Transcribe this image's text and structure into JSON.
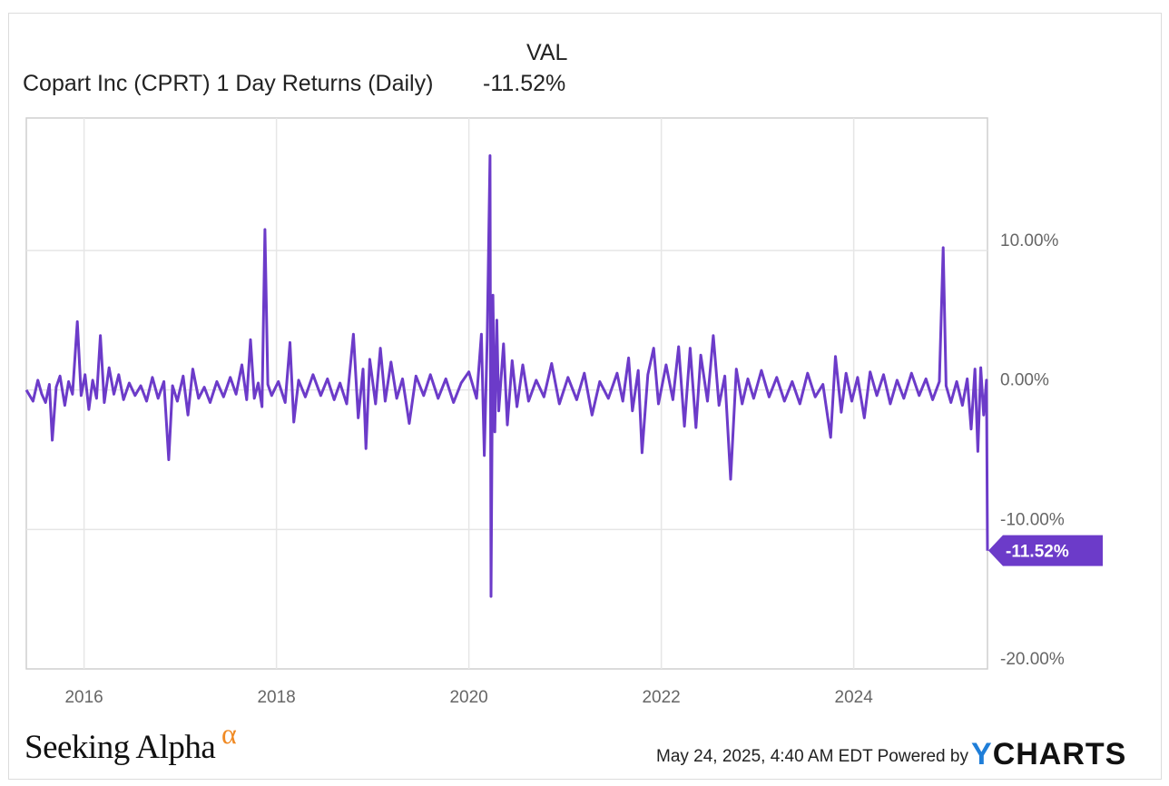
{
  "legend": {
    "column_header": "VAL",
    "series_name": "Copart Inc (CPRT) 1 Day Returns (Daily)",
    "series_value": "-11.52%"
  },
  "chart_data": {
    "type": "line",
    "series": [
      {
        "name": "Copart Inc (CPRT) 1 Day Returns (Daily)",
        "color": "#6c3bc9",
        "points": [
          [
            2015.4,
            0.0
          ],
          [
            2015.47,
            -0.8
          ],
          [
            2015.52,
            0.7
          ],
          [
            2015.56,
            -0.3
          ],
          [
            2015.6,
            -0.9
          ],
          [
            2015.64,
            0.4
          ],
          [
            2015.67,
            -3.6
          ],
          [
            2015.71,
            0.2
          ],
          [
            2015.75,
            1.0
          ],
          [
            2015.8,
            -1.1
          ],
          [
            2015.84,
            0.6
          ],
          [
            2015.88,
            -0.3
          ],
          [
            2015.93,
            4.9
          ],
          [
            2015.97,
            -0.4
          ],
          [
            2016.01,
            1.1
          ],
          [
            2016.05,
            -1.4
          ],
          [
            2016.09,
            0.7
          ],
          [
            2016.13,
            -0.6
          ],
          [
            2016.17,
            3.9
          ],
          [
            2016.21,
            -0.9
          ],
          [
            2016.26,
            1.6
          ],
          [
            2016.31,
            -0.3
          ],
          [
            2016.36,
            1.1
          ],
          [
            2016.41,
            -0.7
          ],
          [
            2016.47,
            0.5
          ],
          [
            2016.53,
            -0.4
          ],
          [
            2016.59,
            0.3
          ],
          [
            2016.65,
            -0.8
          ],
          [
            2016.71,
            0.9
          ],
          [
            2016.77,
            -0.6
          ],
          [
            2016.83,
            0.6
          ],
          [
            2016.88,
            -5.0
          ],
          [
            2016.92,
            0.3
          ],
          [
            2016.97,
            -0.8
          ],
          [
            2017.03,
            1.0
          ],
          [
            2017.08,
            -1.8
          ],
          [
            2017.13,
            1.5
          ],
          [
            2017.19,
            -0.6
          ],
          [
            2017.25,
            0.2
          ],
          [
            2017.31,
            -0.9
          ],
          [
            2017.38,
            0.6
          ],
          [
            2017.45,
            -0.5
          ],
          [
            2017.52,
            0.9
          ],
          [
            2017.58,
            -0.3
          ],
          [
            2017.64,
            1.8
          ],
          [
            2017.69,
            -0.7
          ],
          [
            2017.73,
            3.6
          ],
          [
            2017.77,
            -0.6
          ],
          [
            2017.81,
            0.5
          ],
          [
            2017.85,
            -1.2
          ],
          [
            2017.88,
            11.5
          ],
          [
            2017.91,
            0.4
          ],
          [
            2017.95,
            -0.4
          ],
          [
            2018.02,
            0.6
          ],
          [
            2018.09,
            -0.9
          ],
          [
            2018.14,
            3.4
          ],
          [
            2018.18,
            -2.3
          ],
          [
            2018.23,
            0.7
          ],
          [
            2018.3,
            -0.5
          ],
          [
            2018.38,
            1.1
          ],
          [
            2018.46,
            -0.4
          ],
          [
            2018.53,
            0.8
          ],
          [
            2018.6,
            -0.7
          ],
          [
            2018.66,
            0.5
          ],
          [
            2018.73,
            -1.0
          ],
          [
            2018.8,
            4.0
          ],
          [
            2018.85,
            -2.0
          ],
          [
            2018.9,
            1.5
          ],
          [
            2018.93,
            -4.2
          ],
          [
            2018.97,
            2.2
          ],
          [
            2019.03,
            -1.0
          ],
          [
            2019.08,
            3.0
          ],
          [
            2019.13,
            -0.8
          ],
          [
            2019.19,
            2.0
          ],
          [
            2019.25,
            -0.6
          ],
          [
            2019.31,
            0.8
          ],
          [
            2019.38,
            -2.4
          ],
          [
            2019.45,
            1.0
          ],
          [
            2019.53,
            -0.4
          ],
          [
            2019.6,
            1.1
          ],
          [
            2019.68,
            -0.6
          ],
          [
            2019.76,
            0.8
          ],
          [
            2019.84,
            -0.9
          ],
          [
            2019.92,
            0.5
          ],
          [
            2020.0,
            1.3
          ],
          [
            2020.08,
            -0.6
          ],
          [
            2020.13,
            4.0
          ],
          [
            2020.16,
            -4.7
          ],
          [
            2020.19,
            3.7
          ],
          [
            2020.22,
            16.8
          ],
          [
            2020.23,
            -14.8
          ],
          [
            2020.25,
            6.8
          ],
          [
            2020.27,
            -3.0
          ],
          [
            2020.29,
            5.0
          ],
          [
            2020.31,
            -1.5
          ],
          [
            2020.36,
            3.3
          ],
          [
            2020.4,
            -2.5
          ],
          [
            2020.45,
            2.1
          ],
          [
            2020.5,
            -1.2
          ],
          [
            2020.56,
            1.8
          ],
          [
            2020.62,
            -0.8
          ],
          [
            2020.7,
            0.7
          ],
          [
            2020.78,
            -0.5
          ],
          [
            2020.86,
            1.9
          ],
          [
            2020.94,
            -1.0
          ],
          [
            2021.03,
            0.9
          ],
          [
            2021.12,
            -0.7
          ],
          [
            2021.2,
            1.2
          ],
          [
            2021.28,
            -1.8
          ],
          [
            2021.36,
            0.6
          ],
          [
            2021.45,
            -0.6
          ],
          [
            2021.54,
            1.2
          ],
          [
            2021.6,
            -0.8
          ],
          [
            2021.66,
            2.3
          ],
          [
            2021.7,
            -1.5
          ],
          [
            2021.76,
            1.4
          ],
          [
            2021.8,
            -4.5
          ],
          [
            2021.86,
            1.1
          ],
          [
            2021.92,
            3.0
          ],
          [
            2021.97,
            -1.0
          ],
          [
            2022.05,
            1.8
          ],
          [
            2022.12,
            -0.7
          ],
          [
            2022.18,
            3.1
          ],
          [
            2022.24,
            -2.6
          ],
          [
            2022.3,
            3.0
          ],
          [
            2022.36,
            -2.7
          ],
          [
            2022.41,
            2.5
          ],
          [
            2022.48,
            -0.8
          ],
          [
            2022.54,
            3.9
          ],
          [
            2022.6,
            -1.1
          ],
          [
            2022.66,
            1.0
          ],
          [
            2022.72,
            -6.4
          ],
          [
            2022.78,
            1.5
          ],
          [
            2022.84,
            -1.0
          ],
          [
            2022.9,
            0.8
          ],
          [
            2022.96,
            -0.6
          ],
          [
            2023.04,
            1.4
          ],
          [
            2023.12,
            -0.5
          ],
          [
            2023.2,
            0.9
          ],
          [
            2023.28,
            -0.8
          ],
          [
            2023.36,
            0.6
          ],
          [
            2023.44,
            -1.0
          ],
          [
            2023.52,
            1.2
          ],
          [
            2023.6,
            -0.5
          ],
          [
            2023.68,
            0.4
          ],
          [
            2023.76,
            -3.4
          ],
          [
            2023.81,
            2.4
          ],
          [
            2023.87,
            -1.6
          ],
          [
            2023.92,
            1.2
          ],
          [
            2023.98,
            -0.8
          ],
          [
            2024.04,
            0.9
          ],
          [
            2024.11,
            -2.0
          ],
          [
            2024.17,
            1.3
          ],
          [
            2024.24,
            -0.4
          ],
          [
            2024.31,
            1.1
          ],
          [
            2024.38,
            -1.0
          ],
          [
            2024.45,
            0.7
          ],
          [
            2024.52,
            -0.6
          ],
          [
            2024.6,
            1.2
          ],
          [
            2024.68,
            -0.4
          ],
          [
            2024.75,
            0.8
          ],
          [
            2024.82,
            -0.7
          ],
          [
            2024.89,
            0.6
          ],
          [
            2024.93,
            10.2
          ],
          [
            2024.96,
            0.3
          ],
          [
            2025.01,
            -0.9
          ],
          [
            2025.07,
            0.6
          ],
          [
            2025.13,
            -1.1
          ],
          [
            2025.18,
            0.8
          ],
          [
            2025.22,
            -2.8
          ],
          [
            2025.26,
            1.5
          ],
          [
            2025.29,
            -4.4
          ],
          [
            2025.32,
            1.6
          ],
          [
            2025.35,
            -1.8
          ],
          [
            2025.38,
            0.7
          ],
          [
            2025.39,
            -11.52
          ]
        ]
      }
    ],
    "xlim": [
      2015.4,
      2025.39
    ],
    "ylim": [
      -20,
      19.5
    ],
    "x_ticks": [
      2016,
      2018,
      2020,
      2022,
      2024
    ],
    "x_tick_labels": [
      "2016",
      "2018",
      "2020",
      "2022",
      "2024"
    ],
    "y_ticks": [
      10,
      0,
      -10,
      -20
    ],
    "y_tick_labels": [
      "10.00%",
      "0.00%",
      "-10.00%",
      "-20.00%"
    ],
    "last_value_label": "-11.52%",
    "grid": true,
    "y_axis_position": "right",
    "colors": {
      "line": "#6c3bc9",
      "flag": "#6c3bc9",
      "grid": "#e6e6e6",
      "frame": "#cfcfcf"
    }
  },
  "footer": {
    "brand": "Seeking Alpha",
    "brand_symbol": "α",
    "timestamp": "May 24, 2025, 4:40 AM EDT",
    "powered_by": "Powered by",
    "ycharts_y": "Y",
    "ycharts_rest": "CHARTS"
  }
}
